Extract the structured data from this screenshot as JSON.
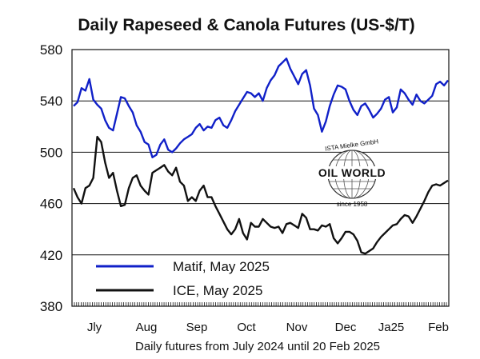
{
  "chart_data": {
    "type": "line",
    "title": "Daily Rapeseed & Canola Futures (US-$/T)",
    "xlabel": "Daily futures from July 2024 until 20 Feb 2025",
    "ylabel": "",
    "ylim": [
      380,
      580
    ],
    "y_ticks": [
      380,
      420,
      460,
      500,
      540,
      580
    ],
    "x_month_labels": [
      "Jly",
      "Aug",
      "Sep",
      "Oct",
      "Nov",
      "Dec",
      "Ja25",
      "Feb"
    ],
    "grid": "horizontal",
    "legend_position": "bottom-left",
    "watermark": {
      "top_text": "ISTA Mielke GmbH",
      "main_text": "OIL WORLD",
      "bottom_text": "since 1958"
    },
    "series": [
      {
        "name": "Matif, May 2025",
        "color": "#1020c8",
        "values": [
          536,
          539,
          550,
          548,
          557,
          541,
          537,
          534,
          525,
          519,
          517,
          530,
          543,
          542,
          536,
          531,
          521,
          516,
          508,
          506,
          496,
          498,
          506,
          510,
          502,
          500,
          503,
          507,
          510,
          512,
          514,
          519,
          522,
          517,
          520,
          519,
          525,
          527,
          521,
          519,
          525,
          532,
          537,
          542,
          547,
          546,
          543,
          546,
          540,
          550,
          556,
          560,
          567,
          570,
          573,
          565,
          559,
          553,
          561,
          564,
          552,
          534,
          529,
          516,
          524,
          536,
          545,
          552,
          551,
          549,
          540,
          533,
          529,
          536,
          538,
          533,
          527,
          530,
          534,
          541,
          543,
          531,
          535,
          549,
          546,
          541,
          537,
          545,
          540,
          538,
          541,
          544,
          553,
          555,
          552,
          556
        ]
      },
      {
        "name": "ICE, May 2025",
        "color": "#111111",
        "values": [
          472,
          465,
          460,
          472,
          474,
          480,
          512,
          508,
          492,
          480,
          484,
          470,
          458,
          459,
          472,
          480,
          482,
          474,
          470,
          467,
          484,
          486,
          488,
          490,
          485,
          482,
          488,
          477,
          474,
          462,
          465,
          462,
          470,
          474,
          465,
          465,
          458,
          452,
          446,
          440,
          436,
          440,
          448,
          437,
          432,
          445,
          442,
          442,
          448,
          445,
          442,
          441,
          442,
          437,
          444,
          445,
          443,
          441,
          452,
          449,
          440,
          440,
          439,
          443,
          442,
          444,
          433,
          429,
          433,
          438,
          438,
          436,
          431,
          422,
          421,
          423,
          425,
          430,
          434,
          437,
          440,
          443,
          444,
          448,
          451,
          450,
          445,
          450,
          456,
          462,
          469,
          474,
          475,
          474,
          476,
          478
        ]
      }
    ]
  }
}
